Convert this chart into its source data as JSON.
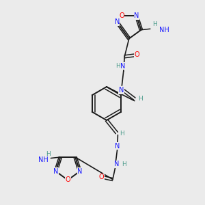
{
  "bg_color": "#ebebeb",
  "bond_color": "#1a1a1a",
  "N_color": "#1414ff",
  "O_color": "#ff0000",
  "H_color": "#4a9a8a",
  "figsize": [
    3.0,
    3.0
  ],
  "dpi": 100,
  "xlim": [
    0,
    10
  ],
  "ylim": [
    0,
    10
  ]
}
